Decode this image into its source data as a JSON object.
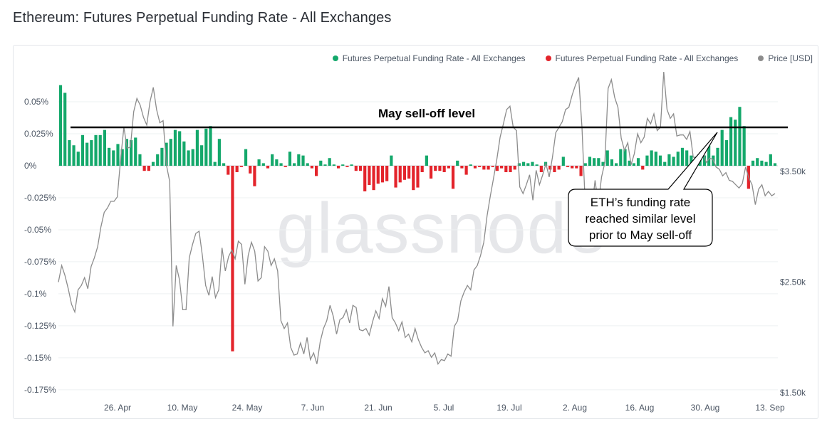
{
  "title": "Ethereum: Futures Perpetual Funding Rate - All Exchanges",
  "legend": [
    {
      "label": "Futures Perpetual Funding Rate - All Exchanges",
      "color": "#14a86b"
    },
    {
      "label": "Futures Perpetual Funding Rate - All Exchanges",
      "color": "#e3242b"
    },
    {
      "label": "Price [USD]",
      "color": "#8c8c8c"
    }
  ],
  "watermark": "glassnode",
  "annotation": "May sell-off level",
  "callout_lines": [
    "ETH’s funding rate",
    "reached similar level",
    "prior to May sell-off"
  ],
  "chart_data": {
    "type": "bar",
    "title": "Ethereum: Futures Perpetual Funding Rate - All Exchanges",
    "x_tick_labels": [
      "26. Apr",
      "10. May",
      "24. May",
      "7. Jun",
      "21. Jun",
      "5. Jul",
      "19. Jul",
      "2. Aug",
      "16. Aug",
      "30. Aug",
      "13. Sep"
    ],
    "y_left": {
      "ticks": [
        "0.05%",
        "0.025%",
        "0%",
        "-0.025%",
        "-0.05%",
        "-0.075%",
        "-0.1%",
        "-0.125%",
        "-0.15%",
        "-0.175%"
      ],
      "range": [
        -0.175,
        0.06
      ],
      "unit": "%"
    },
    "y_right": {
      "ticks": [
        "$3.50k",
        "$2.50k",
        "$1.50k"
      ],
      "range": [
        1500,
        4400
      ],
      "unit": "USD"
    },
    "reference_line": {
      "value": 0.03,
      "label": "May sell-off level"
    },
    "funding_rate": [
      0.063,
      0.057,
      0.02,
      0.016,
      0.011,
      0.024,
      0.018,
      0.02,
      0.024,
      0.024,
      0.028,
      0.014,
      0.012,
      0.017,
      0.013,
      0.021,
      0.02,
      0.022,
      0.009,
      -0.004,
      -0.004,
      0.003,
      0.009,
      0.014,
      0.018,
      0.021,
      0.028,
      0.027,
      0.019,
      0.012,
      0.013,
      0.028,
      0.016,
      0.029,
      0.031,
      0.003,
      0.021,
      0.002,
      -0.007,
      -0.145,
      -0.005,
      -0.001,
      0.013,
      -0.006,
      -0.016,
      0.005,
      0.002,
      -0.002,
      0.009,
      0.005,
      0.002,
      -0.001,
      0.011,
      0.002,
      0.009,
      0.008,
      0.002,
      -0.002,
      -0.008,
      0.004,
      0.001,
      0.006,
      0.001,
      -0.002,
      0.001,
      -0.001,
      0.001,
      -0.004,
      -0.004,
      -0.02,
      -0.015,
      -0.019,
      -0.014,
      -0.013,
      -0.012,
      0.008,
      -0.017,
      -0.013,
      -0.011,
      -0.01,
      -0.019,
      -0.017,
      -0.005,
      0.008,
      -0.01,
      -0.004,
      -0.004,
      -0.005,
      -0.002,
      -0.018,
      0.004,
      -0.002,
      -0.007,
      0.001,
      -0.002,
      -0.001,
      -0.003,
      -0.003,
      -0.001,
      -0.004,
      -0.002,
      -0.005,
      -0.005,
      -0.003,
      0.002,
      0.003,
      0.002,
      0.003,
      0.001,
      -0.005,
      0.003,
      -0.003,
      -0.005,
      -0.003,
      0.007,
      -0.001,
      -0.002,
      -0.002,
      -0.008,
      0.002,
      0.007,
      0.006,
      0.006,
      0.003,
      0.012,
      0.005,
      0.002,
      0.013,
      0.013,
      0.004,
      0.002,
      0.006,
      -0.003,
      0.008,
      0.012,
      0.011,
      0.008,
      0.003,
      0.009,
      0.007,
      0.011,
      0.014,
      0.012,
      0.008,
      0.007,
      0.007,
      0.008,
      0.016,
      0.008,
      0.014,
      0.028,
      0.02,
      0.038,
      0.036,
      0.046,
      0.031,
      -0.018,
      0.004,
      0.006,
      0.004,
      0.003,
      0.009,
      0.002
    ],
    "price_usd": [
      2500,
      2650,
      2560,
      2440,
      2300,
      2230,
      2430,
      2470,
      2540,
      2440,
      2640,
      2720,
      2820,
      3000,
      3130,
      3170,
      3230,
      3230,
      3270,
      3610,
      3900,
      3710,
      3720,
      4040,
      4160,
      4100,
      3990,
      3920,
      4130,
      4260,
      4060,
      3940,
      3960,
      3560,
      3410,
      2100,
      2650,
      2520,
      2250,
      2250,
      2720,
      2840,
      2940,
      2960,
      2740,
      2470,
      2380,
      2550,
      2360,
      2430,
      2810,
      2600,
      2730,
      2790,
      2710,
      2870,
      2840,
      2480,
      2740,
      2860,
      2780,
      2510,
      2540,
      2820,
      2780,
      2650,
      2710,
      2600,
      2150,
      2080,
      2130,
      1910,
      1840,
      1850,
      1950,
      1850,
      2000,
      1800,
      1860,
      1760,
      1960,
      2080,
      2150,
      2290,
      2190,
      2030,
      2160,
      2180,
      2250,
      2130,
      2290,
      2270,
      2070,
      2060,
      2080,
      2020,
      2140,
      2240,
      2170,
      2350,
      2280,
      2460,
      2180,
      2130,
      2060,
      2140,
      2000,
      2030,
      1960,
      2080,
      1980,
      1910,
      1860,
      1880,
      1820,
      1860,
      1760,
      1800,
      1790,
      1850,
      1830,
      2100,
      2150,
      2330,
      2410,
      2470,
      2430,
      2610,
      2650,
      2740,
      2860,
      3100,
      3280,
      3440,
      3610,
      3810,
      3930,
      4060,
      4090,
      3900,
      3870,
      3360,
      3300,
      3380,
      3470,
      3240,
      3510,
      3380,
      3470,
      3570,
      3450,
      3630,
      3850,
      3900,
      3950,
      4060,
      4080,
      4190,
      4280,
      4350,
      3900,
      3200,
      3280,
      3160,
      3420,
      3200,
      3450,
      3580,
      4250,
      4330,
      4170,
      4080,
      3800,
      3690,
      3760,
      3560,
      3660,
      3840,
      3760,
      3810,
      3980,
      3930,
      4020,
      3870,
      3900,
      4400,
      4060,
      3980,
      4020,
      3820,
      3830,
      3830,
      3790,
      3860,
      3630,
      3620,
      3640,
      3680,
      3580,
      3620,
      3610,
      3540,
      3520,
      3460,
      3490,
      3420,
      3410,
      3380,
      3350,
      3390,
      3540,
      3440,
      3380,
      3200,
      3340,
      3380,
      3280,
      3320,
      3280,
      3300
    ]
  }
}
